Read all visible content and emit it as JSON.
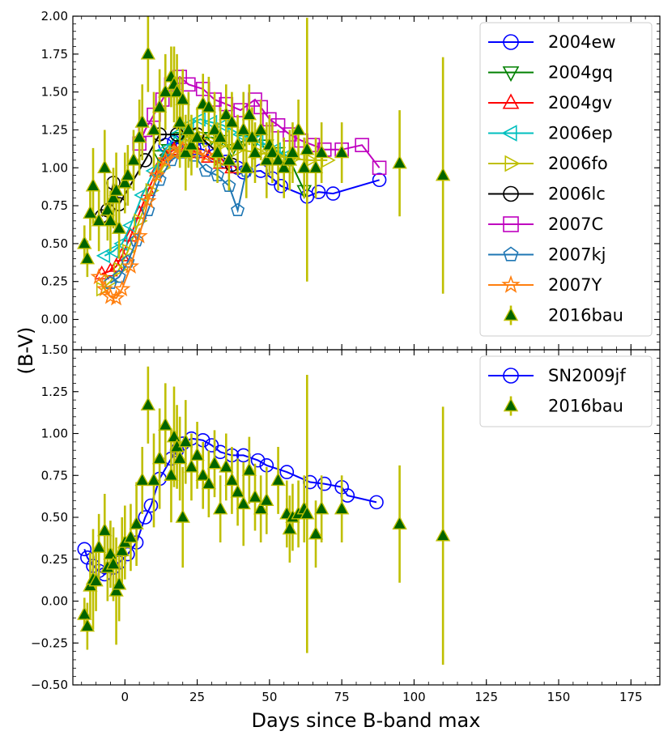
{
  "figure": {
    "xlabel": "Days since B-band max",
    "ylabel": "(B-V)"
  },
  "colors": {
    "2004ew": "#0000ff",
    "2004gq": "#008000",
    "2004gv": "#ff0000",
    "2006ep": "#00bfbf",
    "2006fo": "#bfbf00",
    "2006lc": "#000000",
    "2007C": "#bf00bf",
    "2007kj": "#1f77b4",
    "2007Y": "#ff7f0e",
    "2016bau_face": "#006400",
    "2016bau_err": "#bfbf00",
    "SN2009jf": "#0000ff"
  },
  "chart_data": [
    {
      "type": "line",
      "panel": "top",
      "xlim": [
        -18,
        185
      ],
      "ylim": [
        -0.2,
        2.0
      ],
      "xticks": [
        0,
        25,
        50,
        75,
        100,
        125,
        150,
        175
      ],
      "yticks": [
        0.0,
        0.25,
        0.5,
        0.75,
        1.0,
        1.25,
        1.5,
        1.75,
        2.0
      ],
      "ytick_labels": [
        "0.00",
        "0.25",
        "0.50",
        "0.75",
        "1.00",
        "1.25",
        "1.50",
        "1.75",
        "2.00"
      ],
      "legend_position": "top-right",
      "series": [
        {
          "name": "2004ew",
          "marker": "circle",
          "color": "#0000ff",
          "x": [
            14,
            17,
            20,
            24,
            27,
            31,
            35,
            39,
            41,
            47,
            51,
            54,
            63,
            67,
            72,
            88
          ],
          "y": [
            1.15,
            1.17,
            1.15,
            1.13,
            1.12,
            1.08,
            1.04,
            1.0,
            0.97,
            0.98,
            0.93,
            0.88,
            0.81,
            0.84,
            0.83,
            0.92
          ]
        },
        {
          "name": "2004gq",
          "marker": "triangle-down",
          "color": "#008000",
          "x": [
            12,
            15,
            19,
            23,
            27,
            30,
            33,
            37,
            41,
            45,
            49,
            53,
            57,
            62
          ],
          "y": [
            1.08,
            1.12,
            1.2,
            1.22,
            1.2,
            1.2,
            1.18,
            1.12,
            1.18,
            1.18,
            1.15,
            1.1,
            1.05,
            0.85
          ]
        },
        {
          "name": "2004gv",
          "marker": "triangle-up",
          "color": "#ff0000",
          "x": [
            -8,
            -5,
            -3,
            -1,
            2,
            5,
            8,
            11,
            14,
            17,
            21,
            25,
            29,
            33,
            37
          ],
          "y": [
            0.3,
            0.32,
            0.35,
            0.42,
            0.55,
            0.7,
            0.85,
            0.98,
            1.08,
            1.12,
            1.12,
            1.1,
            1.07,
            1.03,
            1.0
          ]
        },
        {
          "name": "2006ep",
          "marker": "triangle-left",
          "color": "#00bfbf",
          "x": [
            -7,
            -4,
            -1,
            2,
            6,
            10,
            14,
            18,
            22,
            26,
            30,
            34,
            40,
            46,
            52,
            56
          ],
          "y": [
            0.42,
            0.45,
            0.5,
            0.62,
            0.82,
            0.98,
            1.12,
            1.22,
            1.28,
            1.32,
            1.3,
            1.28,
            1.22,
            1.18,
            1.12,
            1.08
          ]
        },
        {
          "name": "2006fo",
          "marker": "triangle-right",
          "color": "#bfbf00",
          "x": [
            -8,
            -5,
            -2,
            1,
            5,
            9,
            13,
            17,
            21,
            25,
            29,
            33,
            39,
            46,
            52,
            58,
            64,
            70
          ],
          "y": [
            0.2,
            0.25,
            0.33,
            0.45,
            0.65,
            0.85,
            1.0,
            1.1,
            1.2,
            1.22,
            1.18,
            1.15,
            1.12,
            1.1,
            1.08,
            1.06,
            1.05,
            1.05
          ]
        },
        {
          "name": "2006lc",
          "marker": "circle",
          "color": "#000000",
          "x": [
            -8,
            -6,
            -4,
            -2,
            7,
            12,
            18,
            25,
            37
          ],
          "y": [
            0.68,
            0.72,
            0.9,
            0.76,
            1.05,
            1.22,
            1.22,
            1.22,
            1.02
          ]
        },
        {
          "name": "2007C",
          "marker": "square",
          "color": "#bf00bf",
          "x": [
            5,
            7,
            10,
            13,
            16,
            19,
            22,
            27,
            31,
            35,
            40,
            45,
            47,
            50,
            53,
            57,
            61,
            65,
            69,
            75,
            82,
            88
          ],
          "y": [
            1.16,
            1.25,
            1.35,
            1.45,
            1.55,
            1.6,
            1.55,
            1.52,
            1.45,
            1.42,
            1.38,
            1.45,
            1.4,
            1.32,
            1.28,
            1.22,
            1.18,
            1.15,
            1.12,
            1.12,
            1.15,
            1.0
          ]
        },
        {
          "name": "2007kj",
          "marker": "pentagon",
          "color": "#1f77b4",
          "x": [
            -5,
            -2,
            1,
            4,
            8,
            12,
            16,
            20,
            24,
            28,
            32,
            36,
            39,
            42
          ],
          "y": [
            0.24,
            0.28,
            0.38,
            0.52,
            0.72,
            0.92,
            1.05,
            1.1,
            1.08,
            0.98,
            0.95,
            0.88,
            0.72,
            0.98
          ]
        },
        {
          "name": "2007Y",
          "marker": "star",
          "color": "#ff7f0e",
          "x": [
            -9,
            -7,
            -5,
            -3,
            -1,
            2,
            5,
            8,
            11,
            14,
            17,
            20,
            24,
            28
          ],
          "y": [
            0.28,
            0.2,
            0.15,
            0.14,
            0.2,
            0.35,
            0.55,
            0.78,
            0.95,
            1.05,
            1.1,
            1.12,
            1.1,
            1.08
          ]
        },
        {
          "name": "2016bau",
          "marker": "triangle-filled",
          "color": "#006400",
          "errcolor": "#bfbf00",
          "x": [
            -14,
            -13,
            -12,
            -11,
            -9,
            -7,
            -6,
            -5,
            -4,
            -3,
            -2,
            0,
            1,
            3,
            5,
            6,
            8,
            10,
            12,
            14,
            16,
            17,
            18,
            19,
            20,
            21,
            22,
            23,
            25,
            27,
            29,
            31,
            32,
            33,
            35,
            36,
            37,
            39,
            41,
            42,
            43,
            44,
            45,
            47,
            49,
            50,
            51,
            53,
            55,
            57,
            58,
            60,
            62,
            63,
            66,
            68,
            75,
            95,
            110
          ],
          "y": [
            0.5,
            0.4,
            0.7,
            0.88,
            0.65,
            1.0,
            0.72,
            0.65,
            0.8,
            0.85,
            0.6,
            0.9,
            0.95,
            1.05,
            1.2,
            1.3,
            1.75,
            1.25,
            1.4,
            1.5,
            1.6,
            1.55,
            1.5,
            1.3,
            1.45,
            1.1,
            1.25,
            1.15,
            1.2,
            1.42,
            1.4,
            1.25,
            1.1,
            1.2,
            1.35,
            1.05,
            1.3,
            1.15,
            1.25,
            1.0,
            1.35,
            1.2,
            1.1,
            1.25,
            1.05,
            1.15,
            1.1,
            1.05,
            1.0,
            1.05,
            1.1,
            1.25,
            1.0,
            1.12,
            1.0,
            1.1,
            1.1,
            1.03,
            0.95
          ],
          "err": [
            0.12,
            0.12,
            0.18,
            0.25,
            0.2,
            0.25,
            0.2,
            0.2,
            0.2,
            0.25,
            0.2,
            0.2,
            0.2,
            0.2,
            0.25,
            0.25,
            0.25,
            0.25,
            0.25,
            0.25,
            0.2,
            0.25,
            0.25,
            0.3,
            0.2,
            0.25,
            0.25,
            0.2,
            0.2,
            0.2,
            0.2,
            0.25,
            0.2,
            0.2,
            0.2,
            0.2,
            0.2,
            0.2,
            0.25,
            0.2,
            0.2,
            0.2,
            0.2,
            0.2,
            0.25,
            0.2,
            0.2,
            0.2,
            0.2,
            0.2,
            0.2,
            0.2,
            0.2,
            0.87,
            0.2,
            0.2,
            0.2,
            0.35,
            0.78
          ]
        }
      ]
    },
    {
      "type": "line",
      "panel": "bottom",
      "xlim": [
        -18,
        185
      ],
      "ylim": [
        -0.5,
        1.5
      ],
      "xticks": [
        0,
        25,
        50,
        75,
        100,
        125,
        150,
        175
      ],
      "xtick_labels": [
        "0",
        "25",
        "50",
        "75",
        "100",
        "125",
        "150",
        "175"
      ],
      "yticks": [
        -0.5,
        -0.25,
        0.0,
        0.25,
        0.5,
        0.75,
        1.0,
        1.25,
        1.5
      ],
      "ytick_labels": [
        "−0.50",
        "−0.25",
        "0.00",
        "0.25",
        "0.50",
        "0.75",
        "1.00",
        "1.25",
        "1.50"
      ],
      "legend_position": "top-right",
      "series": [
        {
          "name": "SN2009jf",
          "marker": "circle",
          "color": "#0000ff",
          "x": [
            -14,
            -13,
            -11,
            -9,
            -7,
            -4,
            -2,
            1,
            4,
            7,
            9,
            12,
            16,
            18,
            20,
            23,
            27,
            30,
            33,
            37,
            41,
            46,
            49,
            56,
            64,
            69,
            75,
            77,
            87
          ],
          "y": [
            0.31,
            0.26,
            0.21,
            0.18,
            0.16,
            0.2,
            0.23,
            0.28,
            0.35,
            0.5,
            0.57,
            0.73,
            0.85,
            0.9,
            0.94,
            0.97,
            0.96,
            0.93,
            0.89,
            0.87,
            0.87,
            0.84,
            0.81,
            0.77,
            0.71,
            0.7,
            0.68,
            0.63,
            0.59
          ]
        },
        {
          "name": "2016bau",
          "marker": "triangle-filled",
          "color": "#006400",
          "errcolor": "#bfbf00",
          "x": [
            -14,
            -13,
            -12,
            -11,
            -10,
            -9,
            -7,
            -6,
            -5,
            -4,
            -3,
            -2,
            -1,
            0,
            2,
            4,
            6,
            8,
            10,
            12,
            14,
            16,
            17,
            18,
            19,
            20,
            21,
            23,
            25,
            27,
            29,
            31,
            33,
            35,
            37,
            39,
            41,
            43,
            45,
            47,
            49,
            53,
            56,
            57,
            58,
            60,
            62,
            63,
            66,
            68,
            75,
            95,
            110
          ],
          "y": [
            -0.08,
            -0.15,
            0.09,
            0.13,
            0.12,
            0.32,
            0.42,
            0.2,
            0.28,
            0.22,
            0.06,
            0.1,
            0.3,
            0.35,
            0.38,
            0.46,
            0.72,
            1.17,
            0.72,
            0.85,
            1.05,
            0.75,
            0.98,
            0.92,
            0.85,
            0.5,
            0.95,
            0.8,
            0.87,
            0.75,
            0.7,
            0.82,
            0.55,
            0.8,
            0.72,
            0.65,
            0.58,
            0.78,
            0.62,
            0.55,
            0.6,
            0.72,
            0.52,
            0.43,
            0.5,
            0.52,
            0.55,
            0.52,
            0.4,
            0.55,
            0.55,
            0.46,
            0.39
          ],
          "err": [
            0.1,
            0.14,
            0.2,
            0.3,
            0.18,
            0.2,
            0.22,
            0.2,
            0.2,
            0.22,
            0.32,
            0.22,
            0.2,
            0.22,
            0.2,
            0.25,
            0.2,
            0.23,
            0.28,
            0.3,
            0.25,
            0.28,
            0.3,
            0.25,
            0.25,
            0.3,
            0.25,
            0.2,
            0.2,
            0.2,
            0.2,
            0.2,
            0.2,
            0.2,
            0.2,
            0.2,
            0.25,
            0.2,
            0.2,
            0.2,
            0.2,
            0.2,
            0.2,
            0.2,
            0.2,
            0.2,
            0.2,
            0.83,
            0.2,
            0.2,
            0.2,
            0.35,
            0.77
          ]
        }
      ]
    }
  ]
}
